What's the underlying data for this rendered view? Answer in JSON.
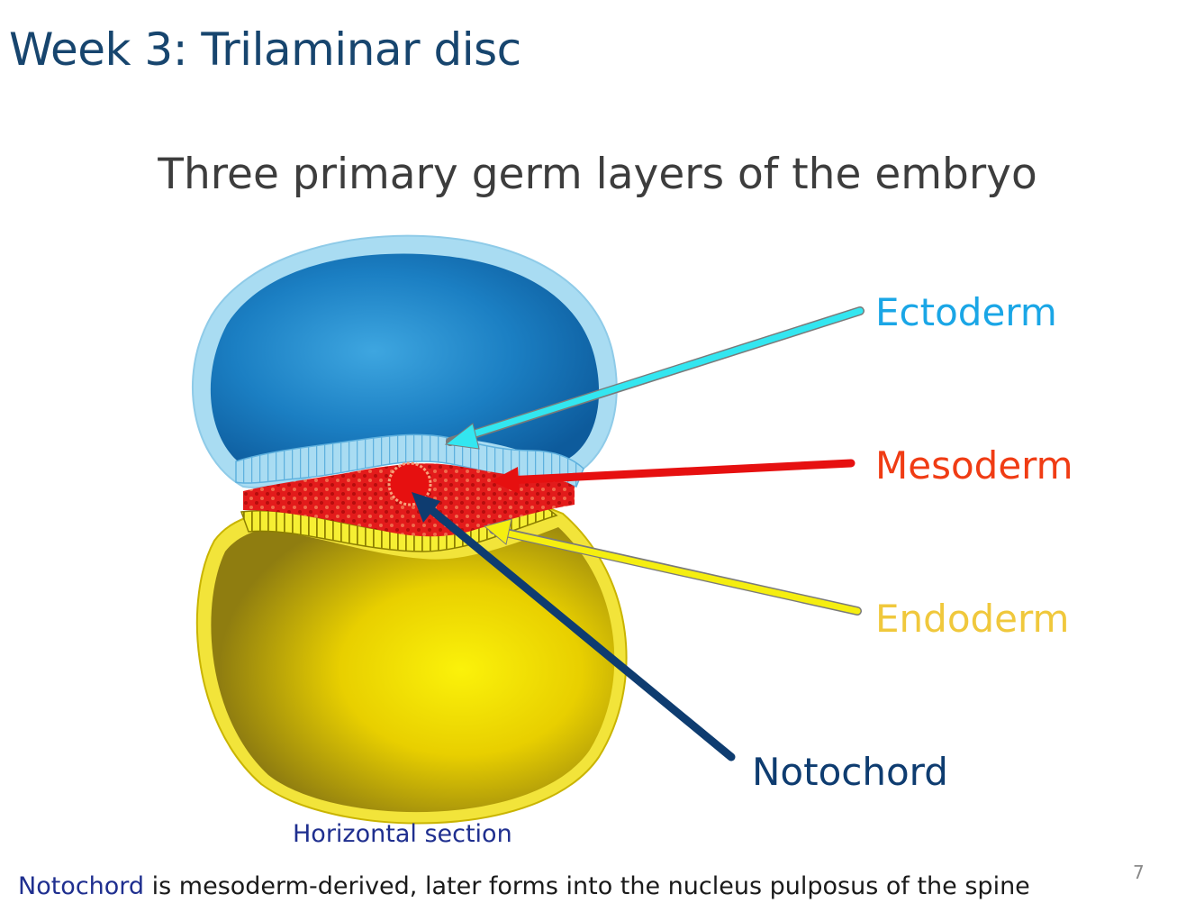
{
  "slide": {
    "title": "Week 3: Trilaminar disc",
    "subtitle": "Three primary germ layers of the embryo",
    "page_number": "7"
  },
  "labels": {
    "ectoderm": "Ectoderm",
    "mesoderm": "Mesoderm",
    "endoderm": "Endoderm",
    "notochord": "Notochord"
  },
  "caption": "Horizontal section",
  "footnote": {
    "highlight": "Notochord",
    "text": " is mesoderm-derived, later forms into the nucleus pulposus of the spine"
  },
  "colors": {
    "title": "#17456e",
    "ectoderm_label": "#1aa6e6",
    "mesoderm_label": "#f03c14",
    "endoderm_label": "#f0c83c",
    "notochord_label": "#0e3c70",
    "ectoderm_arrow": "#33e6f0",
    "mesoderm_arrow": "#e61010",
    "endoderm_arrow": "#f5ee10",
    "notochord_arrow": "#0e3c70",
    "amniotic_cavity": "#1b7fc3",
    "yolk_sac": "#d8b800",
    "mesoderm_layer": "#e31b1b"
  }
}
